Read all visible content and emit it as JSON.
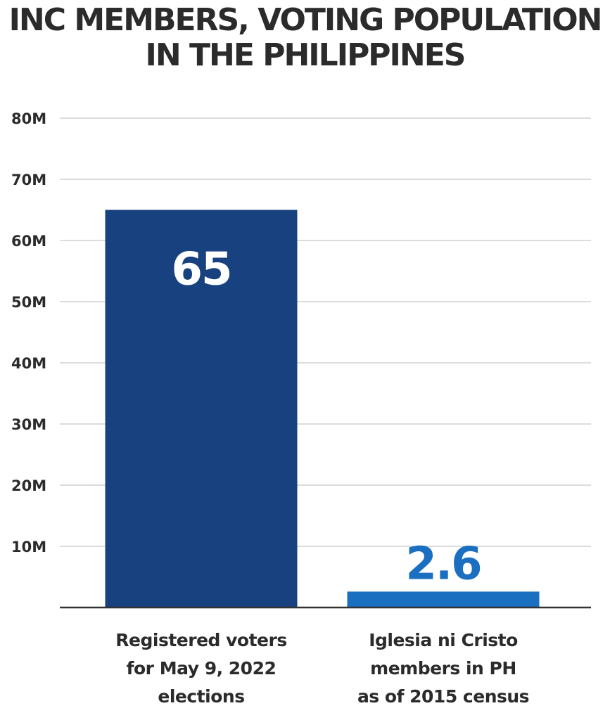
{
  "chart_data": {
    "type": "bar",
    "title_lines": [
      "INC MEMBERS, VOTING POPULATION",
      "IN THE PHILIPPINES"
    ],
    "categories": [
      [
        "Registered voters",
        "for May 9, 2022",
        "elections"
      ],
      [
        "Iglesia ni Cristo",
        "members in PH",
        "as of 2015 census"
      ]
    ],
    "values": [
      65,
      2.6
    ],
    "data_labels": [
      "65",
      "2.6"
    ],
    "ylim": [
      0,
      80
    ],
    "yticks": [
      10,
      20,
      30,
      40,
      50,
      60,
      70,
      80
    ],
    "ytick_labels": [
      "10M",
      "20M",
      "30M",
      "40M",
      "50M",
      "60M",
      "70M",
      "80M"
    ],
    "grid": true,
    "colors": {
      "bar_1": "#17417f",
      "bar_2": "#1b6fc0",
      "label_inside": "#ffffff",
      "label_above": "#1b6fc0",
      "gridline": "#c8c8c8",
      "baseline": "#333333",
      "text": "#2b2b2b"
    }
  }
}
